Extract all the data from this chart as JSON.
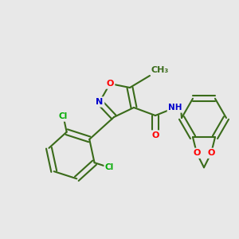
{
  "background_color": "#e8e8e8",
  "bond_color": "#3a6b1a",
  "bond_width": 1.5,
  "atom_colors": {
    "O": "#ff0000",
    "N": "#0000cc",
    "Cl": "#00aa00",
    "C": "#3a6b1a",
    "H": "#666666"
  },
  "figsize": [
    3.0,
    3.0
  ],
  "dpi": 100
}
